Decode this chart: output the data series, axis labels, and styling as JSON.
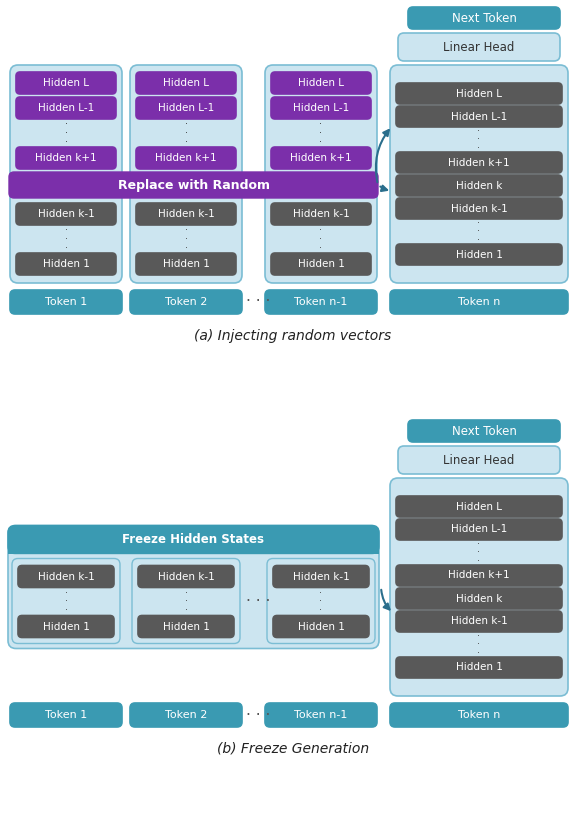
{
  "fig_width": 5.86,
  "fig_height": 8.24,
  "bg_color": "#ffffff",
  "colors": {
    "teal_dark": "#3a9ab2",
    "teal_light": "#cce5f0",
    "teal_border": "#7bbdd4",
    "purple_dark": "#7b2faa",
    "gray_dark": "#595959",
    "arrow_color": "#2a6e8c"
  },
  "diagram_a": {
    "title": "(a) Injecting random vectors",
    "next_token": "Next Token",
    "linear_head": "Linear Head",
    "replace_label": "Replace with Random",
    "upper_labels": [
      "Hidden L",
      "Hidden L-1",
      "·  ·  ·",
      "Hidden k+1"
    ],
    "lower_labels": [
      "Hidden k-1",
      "·  ·  ·",
      "Hidden 1"
    ],
    "token_n_labels": [
      "Hidden L",
      "Hidden L-1",
      "·  ·  ·",
      "Hidden k+1",
      "Hidden k",
      "Hidden k-1",
      "·  ·  ·",
      "Hidden 1"
    ],
    "token_labels": [
      "Token 1",
      "Token 2",
      "Token n-1",
      "Token n"
    ]
  },
  "diagram_b": {
    "title": "(b) Freeze Generation",
    "next_token": "Next Token",
    "linear_head": "Linear Head",
    "freeze_label": "Freeze Hidden States",
    "lower_labels": [
      "Hidden k-1",
      "·  ·  ·",
      "Hidden 1"
    ],
    "token_n_labels": [
      "Hidden L",
      "Hidden L-1",
      "·  ·  ·",
      "Hidden k+1",
      "Hidden k",
      "Hidden k-1",
      "·  ·  ·",
      "Hidden 1"
    ],
    "token_labels": [
      "Token 1",
      "Token 2",
      "Token n-1",
      "Token n"
    ]
  }
}
